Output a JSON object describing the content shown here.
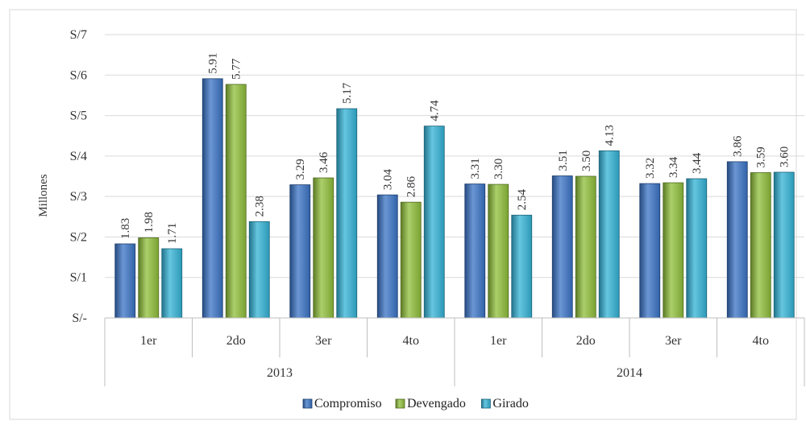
{
  "chart_data": {
    "type": "bar",
    "ylabel": "Millones",
    "ylim": [
      0,
      7
    ],
    "yticks": [
      {
        "value": 0,
        "label": "S/-"
      },
      {
        "value": 1,
        "label": "S/1"
      },
      {
        "value": 2,
        "label": "S/2"
      },
      {
        "value": 3,
        "label": "S/3"
      },
      {
        "value": 4,
        "label": "S/4"
      },
      {
        "value": 5,
        "label": "S/5"
      },
      {
        "value": 6,
        "label": "S/6"
      },
      {
        "value": 7,
        "label": "S/7"
      }
    ],
    "categories": [
      "1er",
      "2do",
      "3er",
      "4to",
      "1er",
      "2do",
      "3er",
      "4to"
    ],
    "groups": [
      {
        "label": "2013",
        "span": 4
      },
      {
        "label": "2014",
        "span": 4
      }
    ],
    "series": [
      {
        "name": "Compromiso",
        "color": "#3a73c6",
        "values": [
          1.83,
          5.91,
          3.29,
          3.04,
          3.31,
          3.51,
          3.32,
          3.86
        ],
        "labels": [
          "1.83",
          "5.91",
          "3.29",
          "3.04",
          "3.31",
          "3.51",
          "3.32",
          "3.86"
        ]
      },
      {
        "name": "Devengado",
        "color": "#8fbf3a",
        "values": [
          1.98,
          5.77,
          3.46,
          2.86,
          3.3,
          3.5,
          3.34,
          3.59
        ],
        "labels": [
          "1.98",
          "5.77",
          "3.46",
          "2.86",
          "3.30",
          "3.50",
          "3.34",
          "3.59"
        ]
      },
      {
        "name": "Girado",
        "color": "#33b3d6",
        "values": [
          1.71,
          2.38,
          5.17,
          4.74,
          2.54,
          4.13,
          3.44,
          3.6
        ],
        "labels": [
          "1.71",
          "2.38",
          "5.17",
          "4.74",
          "2.54",
          "4.13",
          "3.44",
          "3.60"
        ]
      }
    ],
    "grid": true,
    "legend": "bottom"
  }
}
